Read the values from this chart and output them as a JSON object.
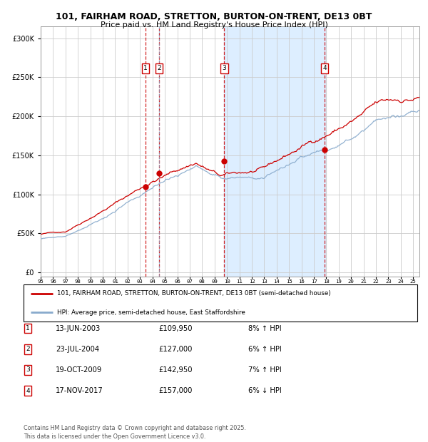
{
  "title_line1": "101, FAIRHAM ROAD, STRETTON, BURTON-ON-TRENT, DE13 0BT",
  "title_line2": "Price paid vs. HM Land Registry's House Price Index (HPI)",
  "ytick_values": [
    0,
    50000,
    100000,
    150000,
    200000,
    250000,
    300000
  ],
  "ylim": [
    -5000,
    315000
  ],
  "xlim_start": 1995.0,
  "xlim_end": 2025.5,
  "sale_events": [
    {
      "num": 1,
      "date": "13-JUN-2003",
      "price": 109950,
      "x_year": 2003.44,
      "pct": "8%",
      "dir": "↑"
    },
    {
      "num": 2,
      "date": "23-JUL-2004",
      "price": 127000,
      "x_year": 2004.55,
      "pct": "6%",
      "dir": "↑"
    },
    {
      "num": 3,
      "date": "19-OCT-2009",
      "price": 142950,
      "x_year": 2009.79,
      "pct": "7%",
      "dir": "↑"
    },
    {
      "num": 4,
      "date": "17-NOV-2017",
      "price": 157000,
      "x_year": 2017.87,
      "pct": "6%",
      "dir": "↓"
    }
  ],
  "shaded_region": [
    2009.75,
    2018.0
  ],
  "legend_line1": "101, FAIRHAM ROAD, STRETTON, BURTON-ON-TRENT, DE13 0BT (semi-detached house)",
  "legend_line2": "HPI: Average price, semi-detached house, East Staffordshire",
  "footer": "Contains HM Land Registry data © Crown copyright and database right 2025.\nThis data is licensed under the Open Government Licence v3.0.",
  "red_color": "#cc0000",
  "blue_color": "#88aacc",
  "shade_color": "#ddeeff",
  "grid_color": "#cccccc"
}
